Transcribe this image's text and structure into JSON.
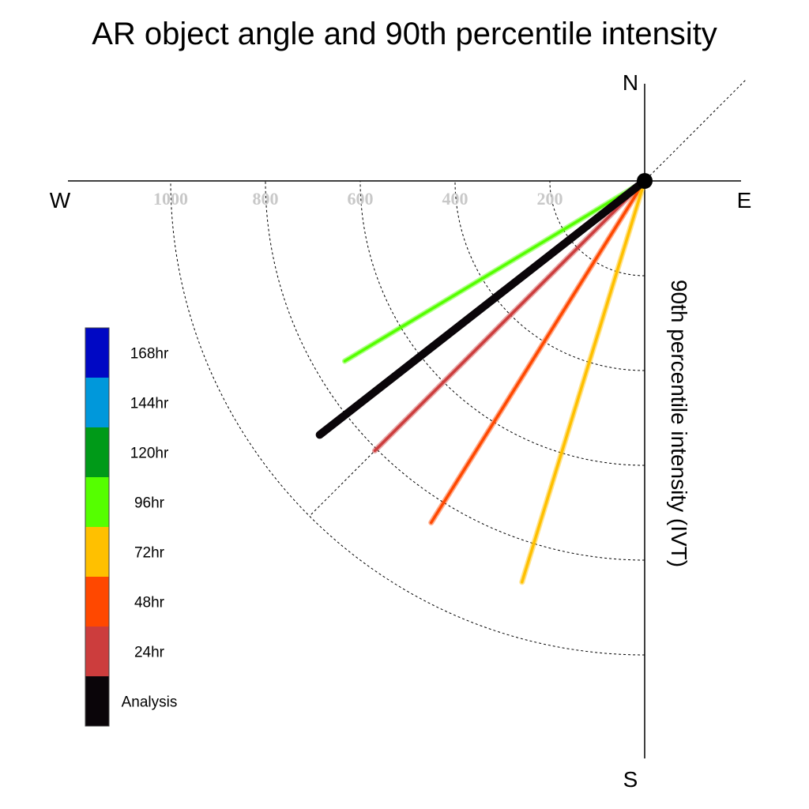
{
  "chart_data": {
    "type": "polar-vector",
    "title": "AR object angle and 90th percentile intensity",
    "radial_label": "90th percentile intensity (IVT)",
    "directions": {
      "north": "N",
      "south": "S",
      "east": "E",
      "west": "W"
    },
    "rings": [
      {
        "value": 200,
        "label": "200"
      },
      {
        "value": 400,
        "label": "400"
      },
      {
        "value": 600,
        "label": "600"
      },
      {
        "value": 800,
        "label": "800"
      },
      {
        "value": 1000,
        "label": "1000"
      }
    ],
    "max_radius": 1200,
    "reference_line_angle_deg": 45,
    "series": [
      {
        "name": "24hr",
        "color": "#cc3d3d",
        "angle_deg": 225,
        "intensity": 805
      },
      {
        "name": "48hr",
        "color": "#ff4800",
        "angle_deg": 212,
        "intensity": 850
      },
      {
        "name": "72hr",
        "color": "#ffc000",
        "angle_deg": 197,
        "intensity": 885
      },
      {
        "name": "96hr",
        "color": "#55ff00",
        "angle_deg": 239,
        "intensity": 738
      },
      {
        "name": "Analysis",
        "color": "#0a0509",
        "angle_deg": 232,
        "intensity": 870
      }
    ],
    "legend": [
      {
        "label": "168hr",
        "color": "#0008c4"
      },
      {
        "label": "144hr",
        "color": "#0098db"
      },
      {
        "label": "120hr",
        "color": "#009a18"
      },
      {
        "label": "96hr",
        "color": "#55ff00"
      },
      {
        "label": "72hr",
        "color": "#ffc000"
      },
      {
        "label": "48hr",
        "color": "#ff4800"
      },
      {
        "label": "24hr",
        "color": "#cc3d3d"
      },
      {
        "label": "Analysis",
        "color": "#0a0509"
      }
    ],
    "legend_placement": "left"
  }
}
